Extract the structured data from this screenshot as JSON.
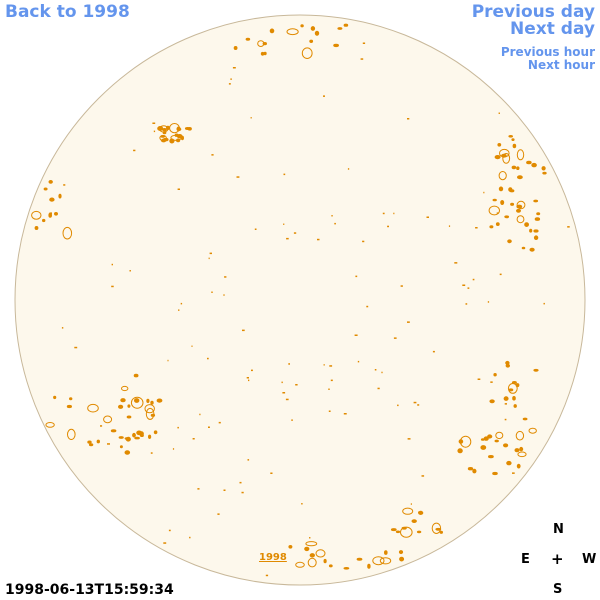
{
  "nav": {
    "back_label": "Back to 1998",
    "prev_day_label": "Previous day",
    "next_day_label": "Next day",
    "prev_hour_label": "Previous hour",
    "next_hour_label": "Next hour"
  },
  "disk": {
    "year_label": "1998",
    "fill_color": "#fdf8ec",
    "border_color": "#c8b89a",
    "contour_color": "#e08a00"
  },
  "timestamp": "1998-06-13T15:59:34",
  "compass": {
    "n": "N",
    "e": "E",
    "center": "+",
    "w": "W",
    "s": "S"
  }
}
